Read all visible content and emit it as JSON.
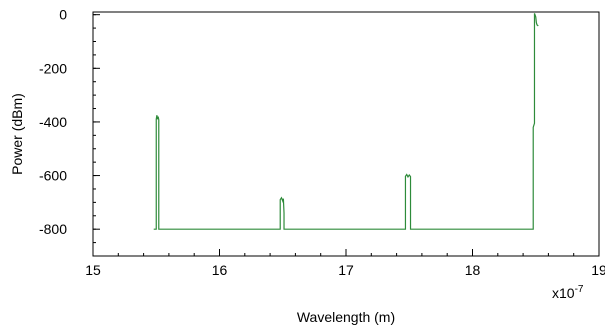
{
  "chart_data": {
    "type": "line",
    "title": "",
    "xlabel": "Wavelength (m)",
    "ylabel": "Power (dBm)",
    "x_multiplier": "x10",
    "x_multiplier_exponent": "-7",
    "xlim": [
      15,
      19
    ],
    "ylim": [
      -900,
      10
    ],
    "x_ticks": [
      15,
      16,
      17,
      18,
      19
    ],
    "y_ticks": [
      0,
      -200,
      -400,
      -600,
      -800
    ],
    "x_tick_labels": [
      "15",
      "16",
      "17",
      "18",
      "19"
    ],
    "y_tick_labels": [
      "0",
      "-200",
      "-400",
      "-600",
      "-800"
    ],
    "x_minor_step": 0.2,
    "y_minor_step": 50,
    "grid": false,
    "legend": "none",
    "line_color": "#2e8b3a",
    "series": [
      {
        "values": [
          [
            15.48,
            -800
          ],
          [
            15.5,
            -800
          ],
          [
            15.5,
            -390
          ],
          [
            15.505,
            -375
          ],
          [
            15.51,
            -390
          ],
          [
            15.515,
            -380
          ],
          [
            15.52,
            -392
          ],
          [
            15.52,
            -800
          ],
          [
            16.48,
            -800
          ],
          [
            16.48,
            -690
          ],
          [
            16.49,
            -683
          ],
          [
            16.5,
            -695
          ],
          [
            16.505,
            -686
          ],
          [
            16.51,
            -740
          ],
          [
            16.51,
            -800
          ],
          [
            16.52,
            -800
          ],
          [
            17.47,
            -800
          ],
          [
            17.47,
            -603
          ],
          [
            17.48,
            -596
          ],
          [
            17.49,
            -605
          ],
          [
            17.5,
            -598
          ],
          [
            17.51,
            -604
          ],
          [
            17.51,
            -800
          ],
          [
            18.48,
            -800
          ],
          [
            18.48,
            -420
          ],
          [
            18.49,
            -405
          ],
          [
            18.49,
            5
          ],
          [
            18.5,
            -8
          ],
          [
            18.505,
            -30
          ],
          [
            18.51,
            -38
          ],
          [
            18.52,
            -42
          ]
        ]
      }
    ]
  }
}
